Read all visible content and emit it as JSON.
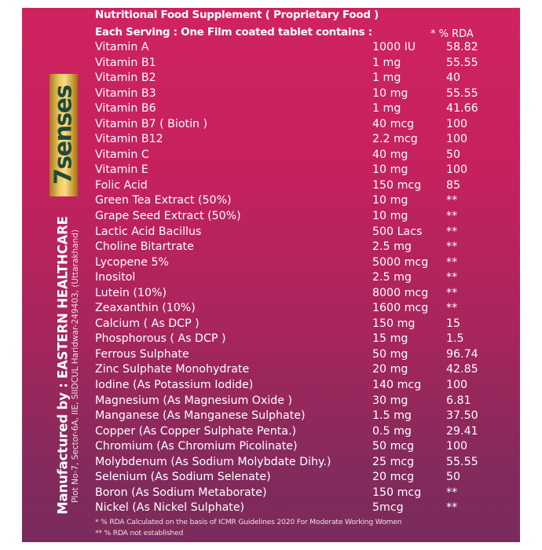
{
  "header": {
    "title": "Nutritional Food Supplement ( Proprietary Food )",
    "serving": "Each Serving : One Film coated tablet contains :",
    "rda_heading": "* % RDA"
  },
  "brand": {
    "logo_text": "7senses",
    "logo_colors": [
      "#f0c860",
      "#1f4a3c",
      "#1a9a9a"
    ]
  },
  "manufacturer": {
    "line": "Manufactured by : EASTERN HEALTHCARE",
    "address": "Plot No-7, Sector-6A, IIE, SIIDCUL Haridwar-249403, (Uttarakhand)"
  },
  "ingredients": [
    {
      "name": "Vitamin A",
      "amount": "1000 IU",
      "rda": "58.82"
    },
    {
      "name": "Vitamin B1",
      "amount": "1 mg",
      "rda": "55.55"
    },
    {
      "name": "Vitamin B2",
      "amount": "1 mg",
      "rda": "40"
    },
    {
      "name": "Vitamin B3",
      "amount": "10 mg",
      "rda": "55.55"
    },
    {
      "name": "Vitamin B6",
      "amount": "1 mg",
      "rda": "41.66"
    },
    {
      "name": "Vitamin B7 ( Biotin )",
      "amount": "40 mcg",
      "rda": "100"
    },
    {
      "name": "Vitamin B12",
      "amount": "2.2 mcg",
      "rda": "100"
    },
    {
      "name": "Vitamin C",
      "amount": "40 mg",
      "rda": "50"
    },
    {
      "name": "Vitamin E",
      "amount": "10 mg",
      "rda": "100"
    },
    {
      "name": "Folic Acid",
      "amount": "150 mcg",
      "rda": "85"
    },
    {
      "name": "Green Tea Extract (50%)",
      "amount": "10 mg",
      "rda": "**"
    },
    {
      "name": "Grape Seed Extract (50%)",
      "amount": "10 mg",
      "rda": "**"
    },
    {
      "name": "Lactic Acid Bacillus",
      "amount": "500 Lacs",
      "rda": "**"
    },
    {
      "name": "Choline Bitartrate",
      "amount": "2.5 mg",
      "rda": "**"
    },
    {
      "name": "Lycopene 5%",
      "amount": "5000 mcg",
      "rda": "**"
    },
    {
      "name": "Inositol",
      "amount": "2.5 mg",
      "rda": "**"
    },
    {
      "name": "Lutein (10%)",
      "amount": "8000 mcg",
      "rda": "**"
    },
    {
      "name": "Zeaxanthin (10%)",
      "amount": "1600 mcg",
      "rda": "**"
    },
    {
      "name": "Calcium ( As DCP )",
      "amount": "150 mg",
      "rda": "15"
    },
    {
      "name": "Phosphorous ( As DCP )",
      "amount": "15 mg",
      "rda": "1.5"
    },
    {
      "name": "Ferrous Sulphate",
      "amount": "50 mg",
      "rda": "96.74"
    },
    {
      "name": "Zinc Sulphate Monohydrate",
      "amount": "20 mg",
      "rda": "42.85"
    },
    {
      "name": "Iodine (As Potassium Iodide)",
      "amount": "140 mcg",
      "rda": "100"
    },
    {
      "name": "Magnesium (As Magnesium Oxide )",
      "amount": "30 mg",
      "rda": "6.81"
    },
    {
      "name": "Manganese (As Manganese Sulphate)",
      "amount": "1.5 mg",
      "rda": "37.50"
    },
    {
      "name": "Copper (As Copper Sulphate Penta.)",
      "amount": "0.5 mg",
      "rda": "29.41"
    },
    {
      "name": "Chromium (As Chromium Picolinate)",
      "amount": "50 mcg",
      "rda": "100"
    },
    {
      "name": "Molybdenum (As Sodium Molybdate Dihy.)",
      "amount": "25 mcg",
      "rda": "55.55"
    },
    {
      "name": "Selenium (As Sodium Selenate)",
      "amount": "20 mcg",
      "rda": "50"
    },
    {
      "name": "Boron (As Sodium Metaborate)",
      "amount": "150 mcg",
      "rda": "**"
    },
    {
      "name": "Nickel (As Nickel Sulphate)",
      "amount": "5mcg",
      "rda": "**"
    }
  ],
  "footnotes": [
    "*  %  RDA Calculated on the basis of ICMR Guidelines 2020 For Moderate Working Women",
    "** %  RDA not established"
  ]
}
